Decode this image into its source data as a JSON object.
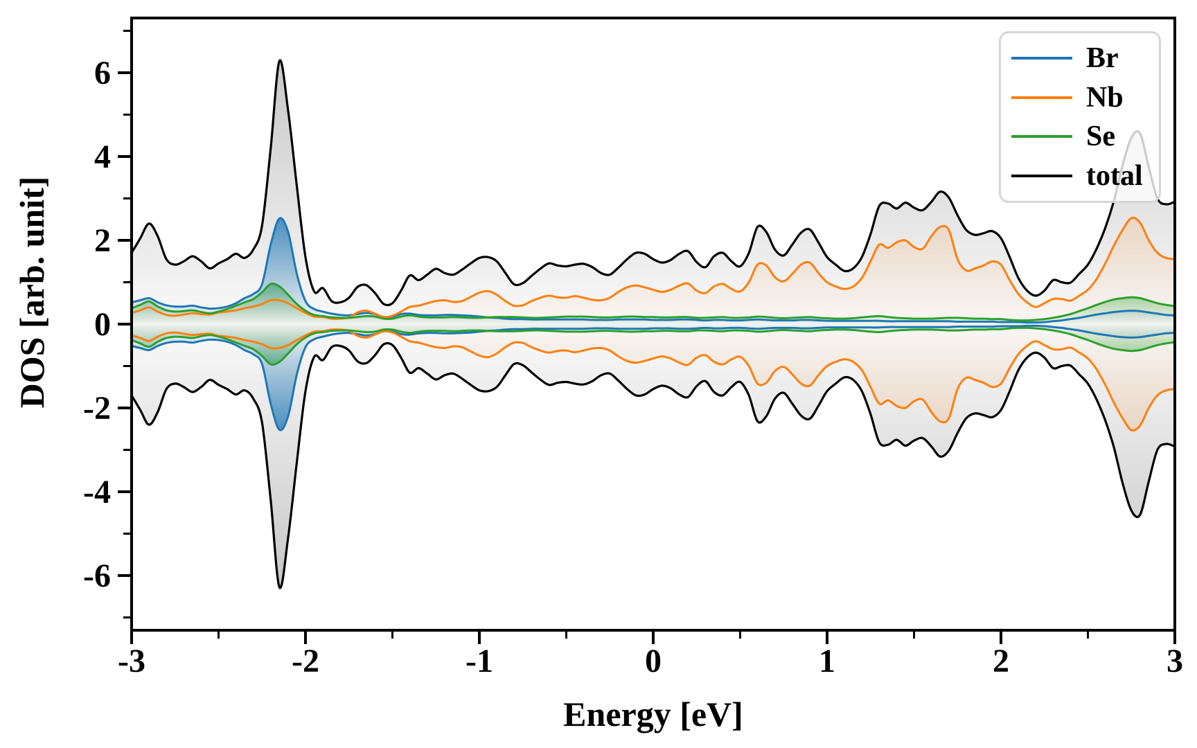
{
  "figure": {
    "xlabel": "Energy [eV]",
    "ylabel": "DOS [arb. unit]"
  },
  "legend": {
    "position": "upper-right",
    "items": [
      {
        "label": "Br",
        "color": "#1f77b4"
      },
      {
        "label": "Nb",
        "color": "#ff7f0e"
      },
      {
        "label": "Se",
        "color": "#2ca02c"
      },
      {
        "label": "total",
        "color": "#000000"
      }
    ]
  },
  "colors": {
    "background": "#ffffff",
    "axis": "#000000",
    "legend_border": "#d6d6d6"
  },
  "chart_data": {
    "type": "area",
    "title": "",
    "xlabel": "Energy [eV]",
    "ylabel": "DOS [arb. unit]",
    "xlim": [
      -3,
      3
    ],
    "ylim": [
      -7.3,
      7.3
    ],
    "x_ticks": [
      -3,
      -2,
      -1,
      0,
      1,
      2,
      3
    ],
    "x_minor_ticks": [
      -2.5,
      -1.5,
      -0.5,
      0.5,
      1.5,
      2.5
    ],
    "y_ticks": [
      -6,
      -4,
      -2,
      0,
      2,
      4,
      6
    ],
    "y_minor_ticks": [
      -7,
      -5,
      -3,
      -1,
      1,
      3,
      5,
      7
    ],
    "grid": false,
    "legend_position": "upper right",
    "mirrored": true,
    "mirror_note": "Spin-resolved DOS: lower half is the exact mirror (negative) of the upper-half values listed below.",
    "x_start": -3,
    "x_step": 0.05,
    "n_points": 121,
    "series": [
      {
        "name": "Br",
        "color": "#1f77b4",
        "fill_alpha": 0.78,
        "values": [
          0.52,
          0.57,
          0.62,
          0.52,
          0.45,
          0.42,
          0.42,
          0.44,
          0.4,
          0.37,
          0.38,
          0.42,
          0.5,
          0.62,
          0.72,
          0.95,
          1.9,
          2.52,
          2.2,
          1.2,
          0.55,
          0.36,
          0.3,
          0.25,
          0.22,
          0.21,
          0.24,
          0.27,
          0.24,
          0.17,
          0.18,
          0.24,
          0.25,
          0.22,
          0.21,
          0.21,
          0.22,
          0.22,
          0.21,
          0.2,
          0.18,
          0.16,
          0.15,
          0.13,
          0.12,
          0.12,
          0.11,
          0.11,
          0.11,
          0.11,
          0.11,
          0.11,
          0.11,
          0.1,
          0.1,
          0.1,
          0.11,
          0.11,
          0.11,
          0.11,
          0.1,
          0.1,
          0.1,
          0.11,
          0.11,
          0.1,
          0.09,
          0.1,
          0.1,
          0.09,
          0.09,
          0.1,
          0.11,
          0.1,
          0.09,
          0.09,
          0.09,
          0.1,
          0.1,
          0.09,
          0.08,
          0.08,
          0.08,
          0.08,
          0.08,
          0.08,
          0.08,
          0.07,
          0.07,
          0.07,
          0.07,
          0.07,
          0.07,
          0.07,
          0.07,
          0.06,
          0.06,
          0.06,
          0.06,
          0.06,
          0.05,
          0.05,
          0.05,
          0.04,
          0.04,
          0.05,
          0.07,
          0.09,
          0.12,
          0.15,
          0.19,
          0.23,
          0.26,
          0.29,
          0.31,
          0.32,
          0.31,
          0.28,
          0.25,
          0.22,
          0.21
        ]
      },
      {
        "name": "Nb",
        "color": "#ff7f0e",
        "fill_alpha": 0.15,
        "values": [
          0.27,
          0.33,
          0.4,
          0.3,
          0.22,
          0.2,
          0.23,
          0.26,
          0.24,
          0.23,
          0.28,
          0.3,
          0.33,
          0.38,
          0.42,
          0.48,
          0.57,
          0.57,
          0.5,
          0.38,
          0.27,
          0.18,
          0.17,
          0.13,
          0.13,
          0.16,
          0.28,
          0.32,
          0.25,
          0.17,
          0.2,
          0.3,
          0.41,
          0.44,
          0.5,
          0.55,
          0.57,
          0.53,
          0.55,
          0.65,
          0.75,
          0.79,
          0.7,
          0.55,
          0.44,
          0.45,
          0.55,
          0.63,
          0.68,
          0.64,
          0.63,
          0.67,
          0.63,
          0.58,
          0.57,
          0.63,
          0.77,
          0.88,
          0.92,
          0.88,
          0.82,
          0.77,
          0.82,
          0.92,
          0.97,
          0.8,
          0.74,
          0.9,
          0.96,
          0.84,
          0.78,
          1.0,
          1.42,
          1.4,
          1.12,
          1.02,
          1.2,
          1.42,
          1.47,
          1.22,
          1.0,
          0.9,
          0.84,
          0.9,
          1.1,
          1.5,
          1.9,
          1.82,
          1.95,
          2.0,
          1.84,
          1.8,
          2.1,
          2.32,
          2.25,
          1.55,
          1.28,
          1.33,
          1.4,
          1.5,
          1.42,
          1.05,
          0.72,
          0.52,
          0.41,
          0.5,
          0.6,
          0.6,
          0.56,
          0.68,
          0.82,
          1.08,
          1.45,
          1.88,
          2.25,
          2.53,
          2.42,
          2.0,
          1.7,
          1.58,
          1.55
        ]
      },
      {
        "name": "Se",
        "color": "#2ca02c",
        "fill_alpha": 0.55,
        "values": [
          0.38,
          0.46,
          0.54,
          0.42,
          0.33,
          0.3,
          0.31,
          0.33,
          0.29,
          0.26,
          0.3,
          0.36,
          0.44,
          0.52,
          0.6,
          0.76,
          0.96,
          0.9,
          0.7,
          0.48,
          0.32,
          0.22,
          0.19,
          0.16,
          0.15,
          0.15,
          0.17,
          0.19,
          0.18,
          0.13,
          0.13,
          0.18,
          0.21,
          0.18,
          0.16,
          0.16,
          0.16,
          0.17,
          0.16,
          0.15,
          0.15,
          0.16,
          0.17,
          0.17,
          0.17,
          0.16,
          0.15,
          0.15,
          0.16,
          0.17,
          0.18,
          0.18,
          0.18,
          0.17,
          0.16,
          0.16,
          0.17,
          0.18,
          0.18,
          0.17,
          0.17,
          0.16,
          0.16,
          0.17,
          0.17,
          0.15,
          0.15,
          0.16,
          0.17,
          0.15,
          0.15,
          0.16,
          0.18,
          0.17,
          0.15,
          0.14,
          0.15,
          0.16,
          0.17,
          0.15,
          0.14,
          0.13,
          0.13,
          0.14,
          0.16,
          0.18,
          0.19,
          0.17,
          0.15,
          0.14,
          0.13,
          0.13,
          0.13,
          0.14,
          0.15,
          0.15,
          0.14,
          0.13,
          0.13,
          0.12,
          0.12,
          0.1,
          0.09,
          0.09,
          0.1,
          0.12,
          0.15,
          0.19,
          0.24,
          0.31,
          0.38,
          0.46,
          0.53,
          0.59,
          0.62,
          0.64,
          0.62,
          0.56,
          0.5,
          0.46,
          0.43
        ]
      },
      {
        "name": "total",
        "color": "#000000",
        "fill_alpha": 0.22,
        "values": [
          1.7,
          2.05,
          2.4,
          2.1,
          1.55,
          1.42,
          1.5,
          1.62,
          1.5,
          1.33,
          1.45,
          1.55,
          1.68,
          1.58,
          1.78,
          2.35,
          4.2,
          6.28,
          5.1,
          3.3,
          1.6,
          0.78,
          0.86,
          0.55,
          0.52,
          0.63,
          0.89,
          0.93,
          0.74,
          0.48,
          0.5,
          0.8,
          1.16,
          1.05,
          1.18,
          1.32,
          1.22,
          1.18,
          1.3,
          1.45,
          1.58,
          1.6,
          1.5,
          1.22,
          0.95,
          0.98,
          1.15,
          1.32,
          1.45,
          1.4,
          1.38,
          1.42,
          1.44,
          1.36,
          1.22,
          1.18,
          1.35,
          1.55,
          1.7,
          1.68,
          1.55,
          1.47,
          1.53,
          1.68,
          1.74,
          1.48,
          1.36,
          1.62,
          1.7,
          1.5,
          1.38,
          1.7,
          2.32,
          2.2,
          1.78,
          1.64,
          1.9,
          2.18,
          2.26,
          1.95,
          1.6,
          1.42,
          1.27,
          1.33,
          1.6,
          2.15,
          2.82,
          2.88,
          2.76,
          2.9,
          2.78,
          2.72,
          2.92,
          3.16,
          3.02,
          2.6,
          2.25,
          2.13,
          2.17,
          2.22,
          2.05,
          1.6,
          1.1,
          0.8,
          0.68,
          0.8,
          1.05,
          1.0,
          0.99,
          1.2,
          1.42,
          1.8,
          2.3,
          2.95,
          3.8,
          4.45,
          4.55,
          3.75,
          3.0,
          2.86,
          2.92
        ]
      }
    ]
  }
}
